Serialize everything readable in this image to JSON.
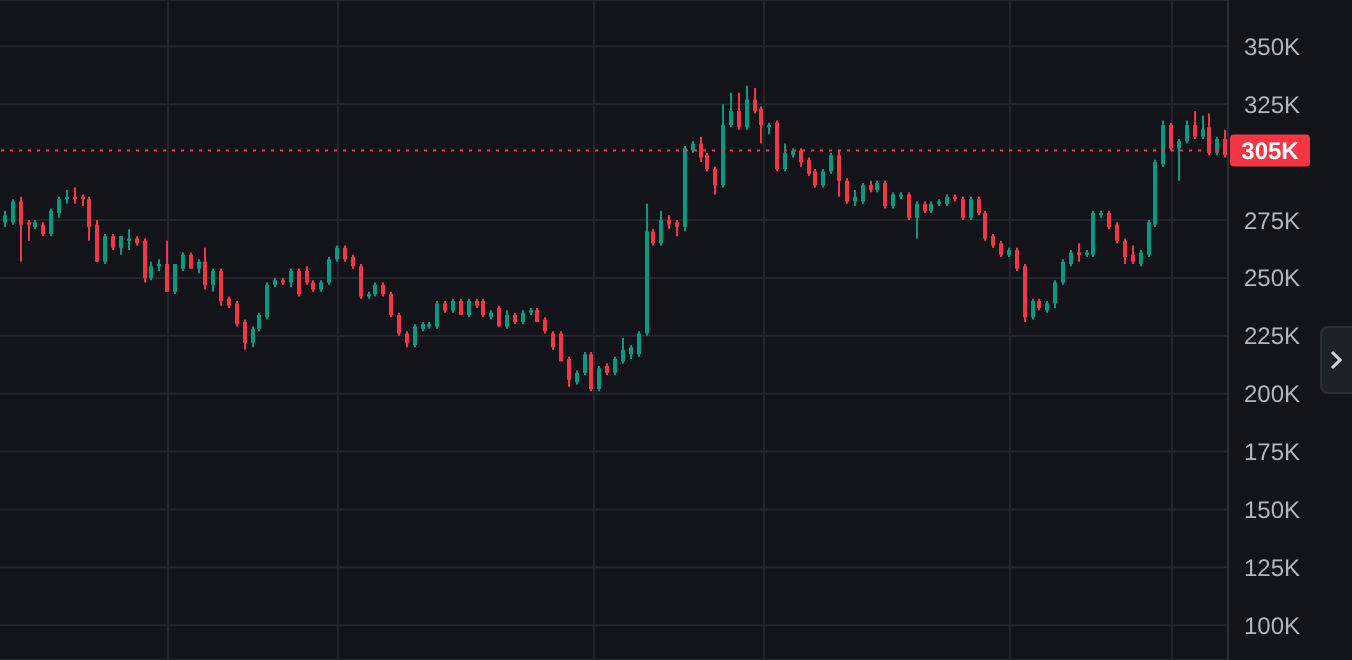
{
  "chart_data": {
    "type": "candlestick",
    "categories": [
      null,
      null,
      null,
      null,
      null,
      null,
      null,
      null,
      null,
      null,
      null,
      null,
      null,
      null,
      null,
      null,
      null,
      null,
      null,
      null,
      null,
      null,
      null,
      null,
      null,
      null,
      null,
      null,
      null,
      null,
      null,
      null,
      null,
      null,
      null,
      null,
      null,
      null,
      null,
      null,
      null,
      null,
      null,
      null,
      null,
      null,
      null,
      null,
      null,
      null,
      null,
      null,
      null,
      null,
      null,
      null,
      null,
      null,
      null,
      null,
      null,
      null,
      null,
      null,
      null,
      null,
      null,
      null,
      null,
      null,
      null,
      null,
      null,
      null,
      null,
      null,
      null,
      null,
      null,
      null,
      null,
      null,
      null,
      null,
      null,
      null,
      null,
      null,
      null,
      null,
      null,
      null,
      null,
      null,
      null,
      null,
      null,
      null,
      null,
      null,
      null,
      null,
      null,
      null,
      null,
      null,
      null,
      null,
      null,
      null,
      null,
      null,
      null,
      null,
      null,
      null,
      null,
      null,
      null,
      null,
      null,
      null,
      null,
      null,
      null,
      null,
      null,
      null,
      null,
      null,
      null,
      null,
      null,
      null,
      null,
      null,
      null,
      null,
      null,
      null,
      null,
      null,
      null,
      null,
      null,
      null,
      null,
      null,
      null,
      null,
      null,
      null,
      null,
      null,
      null,
      null,
      null,
      null,
      null
    ],
    "ohlc": [
      [
        274,
        279,
        272,
        277
      ],
      [
        274,
        284,
        273,
        283
      ],
      [
        283,
        285,
        257,
        273
      ],
      [
        274,
        275,
        266,
        273
      ],
      [
        272,
        275,
        271,
        274
      ],
      [
        273,
        274,
        268,
        269
      ],
      [
        269,
        280,
        268,
        279
      ],
      [
        278,
        285,
        276,
        284
      ],
      [
        284,
        288,
        282,
        285
      ],
      [
        285,
        289,
        282,
        284
      ],
      [
        285,
        286,
        281,
        284
      ],
      [
        284,
        285,
        266,
        272
      ],
      [
        273,
        275,
        257,
        257
      ],
      [
        257,
        269,
        256,
        268
      ],
      [
        268,
        269,
        262,
        263
      ],
      [
        263,
        268,
        260,
        268
      ],
      [
        266,
        271,
        262,
        267
      ],
      [
        267,
        268,
        264,
        265
      ],
      [
        266,
        267,
        248,
        250
      ],
      [
        250,
        257,
        249,
        255
      ],
      [
        255,
        258,
        253,
        256
      ],
      [
        256,
        266,
        244,
        244
      ],
      [
        244,
        256,
        243,
        256
      ],
      [
        254,
        261,
        253,
        260
      ],
      [
        260,
        261,
        254,
        254
      ],
      [
        254,
        258,
        252,
        257
      ],
      [
        257,
        263,
        245,
        247
      ],
      [
        247,
        254,
        244,
        253
      ],
      [
        253,
        254,
        238,
        240
      ],
      [
        241,
        242,
        237,
        238
      ],
      [
        239,
        240,
        229,
        230
      ],
      [
        231,
        232,
        219,
        222
      ],
      [
        222,
        229,
        220,
        228
      ],
      [
        228,
        235,
        227,
        234
      ],
      [
        233,
        248,
        232,
        247
      ],
      [
        247,
        250,
        246,
        249
      ],
      [
        249,
        250,
        247,
        248
      ],
      [
        248,
        254,
        246,
        253
      ],
      [
        253,
        254,
        242,
        243
      ],
      [
        253,
        255,
        247,
        248
      ],
      [
        248,
        249,
        244,
        245
      ],
      [
        245,
        249,
        244,
        248
      ],
      [
        248,
        259,
        247,
        258
      ],
      [
        258,
        264,
        257,
        263
      ],
      [
        263,
        264,
        257,
        258
      ],
      [
        259,
        260,
        254,
        255
      ],
      [
        255,
        256,
        241,
        242
      ],
      [
        242,
        244,
        241,
        243
      ],
      [
        243,
        248,
        242,
        247
      ],
      [
        247,
        248,
        242,
        243
      ],
      [
        243,
        244,
        233,
        234
      ],
      [
        234,
        235,
        225,
        226
      ],
      [
        226,
        227,
        220,
        222
      ],
      [
        221,
        230,
        220,
        229
      ],
      [
        228,
        231,
        227,
        230
      ],
      [
        229,
        231,
        228,
        230
      ],
      [
        229,
        240,
        228,
        239
      ],
      [
        239,
        240,
        235,
        236
      ],
      [
        236,
        241,
        235,
        240
      ],
      [
        240,
        241,
        234,
        234
      ],
      [
        234,
        241,
        233,
        240
      ],
      [
        240,
        241,
        237,
        238
      ],
      [
        240,
        241,
        233,
        234
      ],
      [
        233,
        236,
        232,
        235
      ],
      [
        237,
        238,
        229,
        229
      ],
      [
        229,
        236,
        228,
        234
      ],
      [
        234,
        235,
        230,
        231
      ],
      [
        231,
        236,
        230,
        235
      ],
      [
        235,
        237,
        234,
        236
      ],
      [
        236,
        237,
        231,
        231
      ],
      [
        232,
        233,
        226,
        227
      ],
      [
        226,
        227,
        219,
        220
      ],
      [
        226,
        227,
        214,
        214
      ],
      [
        215,
        216,
        203,
        206
      ],
      [
        205,
        210,
        204,
        209
      ],
      [
        209,
        218,
        208,
        217
      ],
      [
        217,
        218,
        201,
        202
      ],
      [
        202,
        212,
        201,
        211
      ],
      [
        212,
        213,
        208,
        209
      ],
      [
        209,
        216,
        208,
        215
      ],
      [
        214,
        224,
        213,
        219
      ],
      [
        217,
        221,
        215,
        220
      ],
      [
        217,
        227,
        216,
        226
      ],
      [
        226,
        282,
        225,
        270
      ],
      [
        270,
        271,
        264,
        265
      ],
      [
        265,
        279,
        264,
        275
      ],
      [
        275,
        277,
        271,
        273
      ],
      [
        274,
        275,
        268,
        272
      ],
      [
        272,
        307,
        270,
        306
      ],
      [
        305,
        309,
        304,
        308
      ],
      [
        308,
        311,
        300,
        302
      ],
      [
        303,
        304,
        296,
        297
      ],
      [
        297,
        298,
        286,
        290
      ],
      [
        290,
        325,
        289,
        316
      ],
      [
        316,
        330,
        315,
        322
      ],
      [
        322,
        330,
        314,
        315
      ],
      [
        315,
        333,
        314,
        327
      ],
      [
        327,
        332,
        321,
        322
      ],
      [
        323,
        324,
        308,
        316
      ],
      [
        315,
        317,
        312,
        316
      ],
      [
        317,
        318,
        296,
        297
      ],
      [
        297,
        308,
        296,
        304
      ],
      [
        303,
        306,
        302,
        305
      ],
      [
        305,
        306,
        298,
        300
      ],
      [
        301,
        302,
        294,
        295
      ],
      [
        296,
        297,
        289,
        290
      ],
      [
        290,
        297,
        289,
        296
      ],
      [
        296,
        304,
        295,
        303
      ],
      [
        303,
        305,
        285,
        292
      ],
      [
        292,
        293,
        282,
        283
      ],
      [
        283,
        288,
        281,
        285
      ],
      [
        283,
        291,
        282,
        290
      ],
      [
        290,
        292,
        287,
        288
      ],
      [
        288,
        292,
        287,
        291
      ],
      [
        291,
        292,
        280,
        281
      ],
      [
        281,
        287,
        280,
        286
      ],
      [
        285,
        287,
        284,
        286
      ],
      [
        286,
        287,
        275,
        276
      ],
      [
        276,
        283,
        267,
        282
      ],
      [
        282,
        283,
        278,
        279
      ],
      [
        279,
        283,
        278,
        282
      ],
      [
        282,
        284,
        281,
        283
      ],
      [
        282,
        286,
        281,
        285
      ],
      [
        285,
        286,
        283,
        284
      ],
      [
        284,
        285,
        275,
        276
      ],
      [
        276,
        285,
        275,
        284
      ],
      [
        284,
        285,
        277,
        278
      ],
      [
        278,
        279,
        266,
        267
      ],
      [
        268,
        269,
        263,
        264
      ],
      [
        265,
        266,
        259,
        260
      ],
      [
        260,
        263,
        259,
        262
      ],
      [
        262,
        263,
        253,
        254
      ],
      [
        255,
        256,
        231,
        233
      ],
      [
        233,
        241,
        232,
        240
      ],
      [
        240,
        241,
        236,
        237
      ],
      [
        236,
        240,
        235,
        239
      ],
      [
        239,
        249,
        237,
        248
      ],
      [
        248,
        258,
        247,
        257
      ],
      [
        256,
        262,
        255,
        261
      ],
      [
        261,
        265,
        257,
        260
      ],
      [
        260,
        262,
        259,
        261
      ],
      [
        260,
        279,
        259,
        278
      ],
      [
        277,
        279,
        276,
        278
      ],
      [
        278,
        279,
        271,
        272
      ],
      [
        273,
        274,
        265,
        266
      ],
      [
        266,
        267,
        256,
        259
      ],
      [
        260,
        264,
        256,
        257
      ],
      [
        256,
        262,
        255,
        261
      ],
      [
        260,
        275,
        259,
        274
      ],
      [
        273,
        301,
        272,
        300
      ],
      [
        299,
        318,
        298,
        316
      ],
      [
        316,
        317,
        305,
        306
      ],
      [
        306,
        310,
        292,
        309
      ],
      [
        309,
        318,
        308,
        316
      ],
      [
        316,
        322,
        310,
        311
      ],
      [
        311,
        320,
        310,
        314
      ],
      [
        315,
        321,
        303,
        304
      ],
      [
        304,
        311,
        303,
        310
      ],
      [
        310,
        314,
        302,
        303
      ]
    ],
    "colors": [
      "#089981",
      "#089981",
      "#f23645",
      "#f23645",
      "#089981",
      "#f23645",
      "#089981",
      "#089981",
      "#089981",
      "#f23645",
      "#f23645",
      "#f23645",
      "#f23645",
      "#089981",
      "#f23645",
      "#089981",
      "#089981",
      "#f23645",
      "#f23645",
      "#089981",
      "#089981",
      "#f23645",
      "#089981",
      "#089981",
      "#f23645",
      "#089981",
      "#f23645",
      "#089981",
      "#f23645",
      "#f23645",
      "#f23645",
      "#f23645",
      "#089981",
      "#089981",
      "#089981",
      "#089981",
      "#f23645",
      "#089981",
      "#f23645",
      "#f23645",
      "#f23645",
      "#089981",
      "#089981",
      "#089981",
      "#f23645",
      "#f23645",
      "#f23645",
      "#089981",
      "#089981",
      "#f23645",
      "#f23645",
      "#f23645",
      "#f23645",
      "#089981",
      "#089981",
      "#089981",
      "#089981",
      "#f23645",
      "#089981",
      "#f23645",
      "#089981",
      "#f23645",
      "#f23645",
      "#089981",
      "#f23645",
      "#089981",
      "#f23645",
      "#089981",
      "#089981",
      "#f23645",
      "#f23645",
      "#f23645",
      "#f23645",
      "#f23645",
      "#089981",
      "#089981",
      "#f23645",
      "#089981",
      "#f23645",
      "#089981",
      "#089981",
      "#089981",
      "#089981",
      "#089981",
      "#f23645",
      "#089981",
      "#f23645",
      "#f23645",
      "#089981",
      "#089981",
      "#f23645",
      "#f23645",
      "#f23645",
      "#089981",
      "#089981",
      "#f23645",
      "#089981",
      "#f23645",
      "#f23645",
      "#089981",
      "#f23645",
      "#089981",
      "#089981",
      "#f23645",
      "#f23645",
      "#f23645",
      "#089981",
      "#089981",
      "#f23645",
      "#f23645",
      "#089981",
      "#089981",
      "#f23645",
      "#089981",
      "#f23645",
      "#089981",
      "#089981",
      "#f23645",
      "#089981",
      "#f23645",
      "#089981",
      "#089981",
      "#089981",
      "#f23645",
      "#f23645",
      "#089981",
      "#f23645",
      "#f23645",
      "#f23645",
      "#f23645",
      "#089981",
      "#f23645",
      "#f23645",
      "#089981",
      "#f23645",
      "#089981",
      "#089981",
      "#089981",
      "#089981",
      "#f23645",
      "#089981",
      "#089981",
      "#089981",
      "#f23645",
      "#f23645",
      "#f23645",
      "#f23645",
      "#089981",
      "#089981",
      "#089981",
      "#089981",
      "#f23645",
      "#089981",
      "#089981",
      "#f23645",
      "#089981",
      "#f23645",
      "#089981",
      "#f23645"
    ],
    "ylim": [
      85,
      370
    ],
    "yticks": [
      {
        "value": 100,
        "label": "100K"
      },
      {
        "value": 125,
        "label": "125K"
      },
      {
        "value": 150,
        "label": "150K"
      },
      {
        "value": 175,
        "label": "175K"
      },
      {
        "value": 200,
        "label": "200K"
      },
      {
        "value": 225,
        "label": "225K"
      },
      {
        "value": 250,
        "label": "250K"
      },
      {
        "value": 275,
        "label": "275K"
      },
      {
        "value": 325,
        "label": "325K"
      },
      {
        "value": 350,
        "label": "350K"
      }
    ],
    "ref_lines": [
      {
        "axis": "y",
        "value": 305,
        "label": "305K",
        "color": "#f23645",
        "line_style": "dotted"
      }
    ],
    "grid": true,
    "tick_labels": "y"
  }
}
